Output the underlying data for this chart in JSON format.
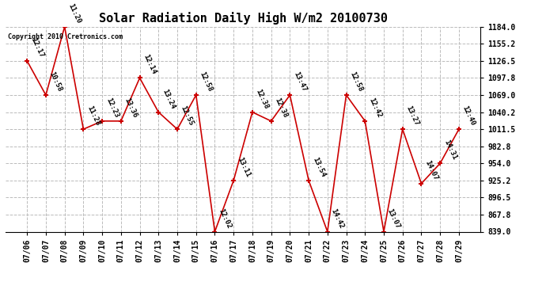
{
  "title": "Solar Radiation Daily High W/m2 20100730",
  "copyright": "Copyright 2010 Cretronics.com",
  "dates": [
    "07/06",
    "07/07",
    "07/08",
    "07/09",
    "07/10",
    "07/11",
    "07/12",
    "07/13",
    "07/14",
    "07/15",
    "07/16",
    "07/17",
    "07/18",
    "07/19",
    "07/20",
    "07/21",
    "07/22",
    "07/23",
    "07/24",
    "07/25",
    "07/26",
    "07/27",
    "07/28",
    "07/29"
  ],
  "values": [
    1126.5,
    1069.0,
    1184.0,
    1011.5,
    1025.2,
    1025.2,
    1097.8,
    1040.2,
    1011.5,
    1069.0,
    839.0,
    925.2,
    1040.2,
    1025.2,
    1069.0,
    925.2,
    839.0,
    1069.0,
    1025.2,
    839.0,
    1011.5,
    920.0,
    954.0,
    1011.5
  ],
  "labels": [
    "12:17",
    "10:58",
    "11:20",
    "11:28",
    "12:23",
    "13:36",
    "12:14",
    "13:24",
    "12:55",
    "12:58",
    "12:02",
    "13:11",
    "12:38",
    "12:38",
    "13:47",
    "13:54",
    "14:42",
    "12:58",
    "12:42",
    "13:07",
    "13:27",
    "14:07",
    "14:31",
    "12:40"
  ],
  "ylim": [
    839.0,
    1184.0
  ],
  "ytick_labels": [
    "839.0",
    "867.8",
    "896.5",
    "925.2",
    "954.0",
    "982.8",
    "1011.5",
    "1040.2",
    "1069.0",
    "1097.8",
    "1126.5",
    "1155.2",
    "1184.0"
  ],
  "ytick_values": [
    839.0,
    867.8,
    896.5,
    925.2,
    954.0,
    982.8,
    1011.5,
    1040.2,
    1069.0,
    1097.8,
    1126.5,
    1155.2,
    1184.0
  ],
  "line_color": "#cc0000",
  "marker_color": "#cc0000",
  "bg_color": "#ffffff",
  "grid_color": "#bbbbbb",
  "title_fontsize": 11,
  "label_fontsize": 6.5,
  "tick_fontsize": 7,
  "copyright_fontsize": 6
}
